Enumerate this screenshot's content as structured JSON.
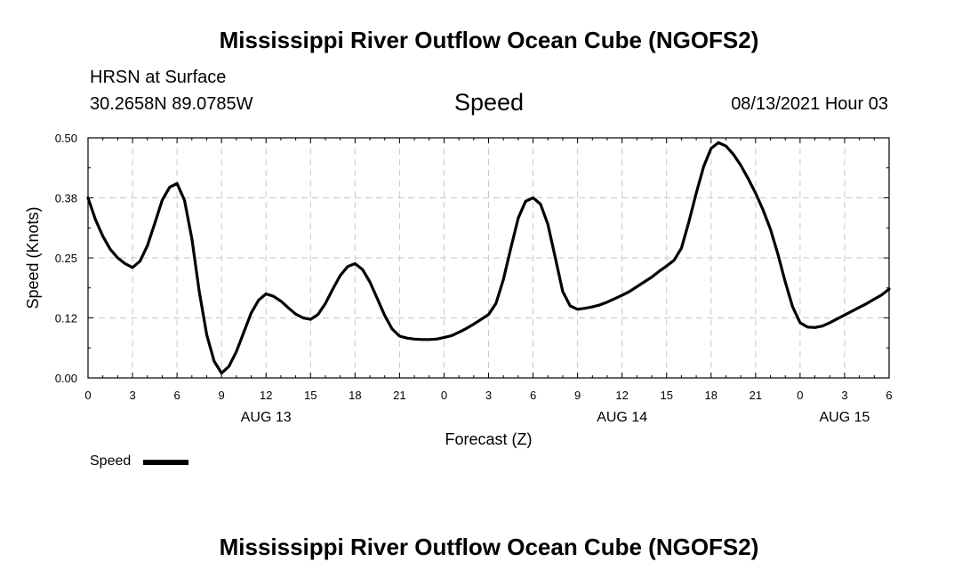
{
  "header": {
    "title": "Mississippi River Outflow Ocean Cube (NGOFS2)",
    "station": "HRSN at Surface",
    "coords": "30.2658N  89.0785W",
    "variable": "Speed",
    "datetime": "08/13/2021 Hour 03"
  },
  "footer": {
    "title": "Mississippi River Outflow Ocean Cube (NGOFS2)"
  },
  "legend": {
    "label": "Speed"
  },
  "chart_data": {
    "type": "line",
    "title": "Speed",
    "xlabel": "Forecast (Z)",
    "ylabel": "Speed (Knots)",
    "xlim": [
      0,
      54
    ],
    "ylim": [
      0,
      0.5
    ],
    "grid": true,
    "x_ticks": [
      0,
      3,
      6,
      9,
      12,
      15,
      18,
      21,
      24,
      27,
      30,
      33,
      36,
      39,
      42,
      45,
      48,
      51,
      54
    ],
    "x_tick_labels": [
      "0",
      "3",
      "6",
      "9",
      "12",
      "15",
      "18",
      "21",
      "0",
      "3",
      "6",
      "9",
      "12",
      "15",
      "18",
      "21",
      "0",
      "3",
      "6"
    ],
    "y_ticks": [
      0,
      0.125,
      0.25,
      0.375,
      0.5
    ],
    "y_tick_labels": [
      "0.00",
      "0.12",
      "0.25",
      "0.38",
      "0.50"
    ],
    "day_labels": [
      {
        "x": 12,
        "label": "AUG 13"
      },
      {
        "x": 36,
        "label": "AUG 14"
      },
      {
        "x": 51,
        "label": "AUG 15"
      }
    ],
    "series": [
      {
        "name": "Speed",
        "color": "#000000",
        "x": [
          0,
          0.5,
          1,
          1.5,
          2,
          2.5,
          3,
          3.5,
          4,
          4.5,
          5,
          5.5,
          6,
          6.5,
          7,
          7.5,
          8,
          8.5,
          9,
          9.5,
          10,
          10.5,
          11,
          11.5,
          12,
          12.5,
          13,
          13.5,
          14,
          14.5,
          15,
          15.5,
          16,
          16.5,
          17,
          17.5,
          18,
          18.5,
          19,
          19.5,
          20,
          20.5,
          21,
          21.5,
          22,
          22.5,
          23,
          23.5,
          24,
          24.5,
          25,
          25.5,
          26,
          26.5,
          27,
          27.5,
          28,
          28.5,
          29,
          29.5,
          30,
          30.5,
          31,
          31.5,
          32,
          32.5,
          33,
          33.5,
          34,
          34.5,
          35,
          35.5,
          36,
          36.5,
          37,
          37.5,
          38,
          38.5,
          39,
          39.5,
          40,
          40.5,
          41,
          41.5,
          42,
          42.5,
          43,
          43.5,
          44,
          44.5,
          45,
          45.5,
          46,
          46.5,
          47,
          47.5,
          48,
          48.5,
          49,
          49.5,
          50,
          50.5,
          51,
          51.5,
          52,
          52.5,
          53,
          53.5,
          54
        ],
        "values": [
          0.375,
          0.33,
          0.295,
          0.268,
          0.25,
          0.238,
          0.23,
          0.243,
          0.275,
          0.322,
          0.37,
          0.397,
          0.405,
          0.37,
          0.29,
          0.18,
          0.09,
          0.035,
          0.01,
          0.024,
          0.055,
          0.095,
          0.135,
          0.162,
          0.175,
          0.17,
          0.16,
          0.146,
          0.133,
          0.125,
          0.122,
          0.132,
          0.155,
          0.185,
          0.213,
          0.232,
          0.238,
          0.226,
          0.2,
          0.165,
          0.13,
          0.102,
          0.087,
          0.083,
          0.081,
          0.08,
          0.08,
          0.081,
          0.084,
          0.088,
          0.095,
          0.103,
          0.112,
          0.122,
          0.132,
          0.155,
          0.205,
          0.27,
          0.333,
          0.368,
          0.375,
          0.362,
          0.32,
          0.25,
          0.18,
          0.15,
          0.143,
          0.145,
          0.148,
          0.152,
          0.158,
          0.165,
          0.172,
          0.18,
          0.19,
          0.2,
          0.21,
          0.222,
          0.233,
          0.245,
          0.27,
          0.325,
          0.385,
          0.44,
          0.478,
          0.49,
          0.483,
          0.466,
          0.443,
          0.415,
          0.385,
          0.35,
          0.31,
          0.258,
          0.2,
          0.148,
          0.115,
          0.106,
          0.105,
          0.108,
          0.115,
          0.123,
          0.131,
          0.139,
          0.147,
          0.155,
          0.164,
          0.173,
          0.185
        ]
      }
    ]
  }
}
